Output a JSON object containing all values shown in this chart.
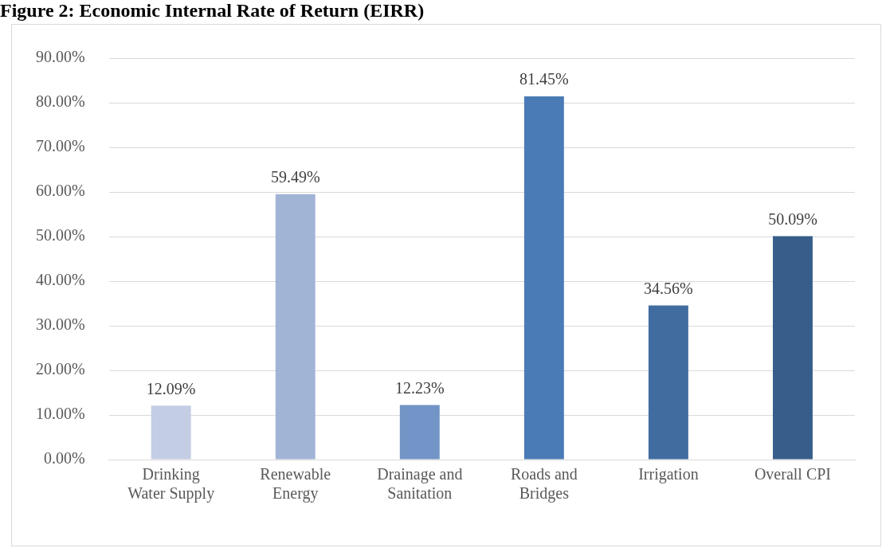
{
  "chart_data": {
    "type": "bar",
    "title": "Figure 2: Economic Internal Rate of Return (EIRR)",
    "categories": [
      "Drinking\nWater Supply",
      "Renewable\nEnergy",
      "Drainage and\nSanitation",
      "Roads and\nBridges",
      "Irrigation",
      "Overall CPI"
    ],
    "values": [
      12.09,
      59.49,
      12.23,
      81.45,
      34.56,
      50.09
    ],
    "value_labels": [
      "12.09%",
      "59.49%",
      "12.23%",
      "81.45%",
      "34.56%",
      "50.09%"
    ],
    "colors": [
      "#c3cde3",
      "#a2b4d6",
      "#7294c6",
      "#4a7bb6",
      "#416ca0",
      "#375d8a"
    ],
    "ylim": [
      0,
      90
    ],
    "yticks": [
      {
        "value": 0,
        "label": "0.00%"
      },
      {
        "value": 10,
        "label": "10.00%"
      },
      {
        "value": 20,
        "label": "20.00%"
      },
      {
        "value": 30,
        "label": "30.00%"
      },
      {
        "value": 40,
        "label": "40.00%"
      },
      {
        "value": 50,
        "label": "50.00%"
      },
      {
        "value": 60,
        "label": "60.00%"
      },
      {
        "value": 70,
        "label": "70.00%"
      },
      {
        "value": 80,
        "label": "80.00%"
      },
      {
        "value": 90,
        "label": "90.00%"
      }
    ],
    "grid": "y",
    "legend": false
  }
}
